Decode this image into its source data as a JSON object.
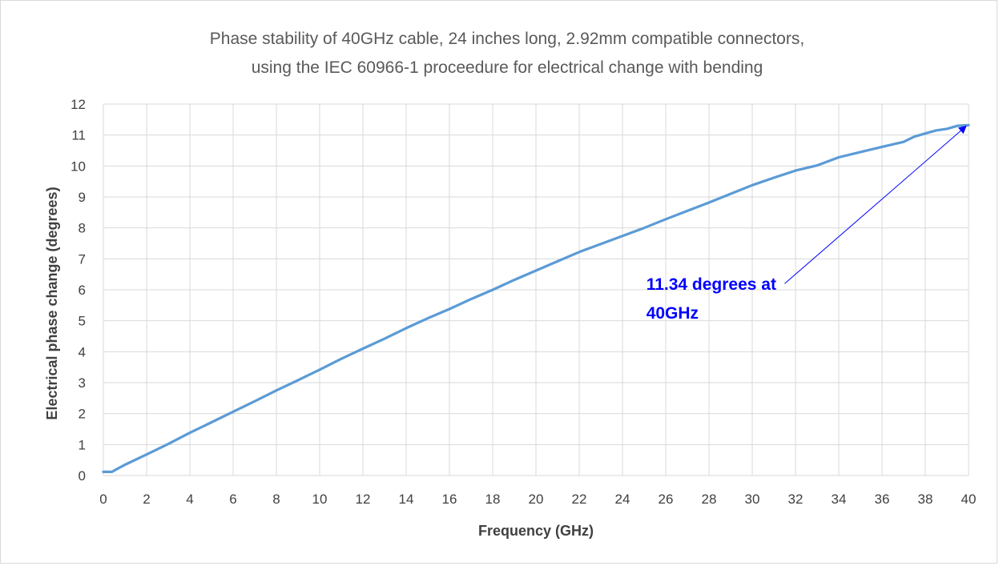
{
  "chart_data": {
    "type": "line",
    "title_lines": [
      "Phase stability of 40GHz cable, 24 inches long, 2.92mm compatible connectors,",
      "using the IEC 60966-1 proceedure for electrical change with bending"
    ],
    "xlabel": "Frequency (GHz)",
    "ylabel": "Electrical phase change (degrees)",
    "xlim": [
      0,
      40
    ],
    "ylim": [
      0,
      12
    ],
    "x_ticks": [
      "0",
      "2",
      "4",
      "6",
      "8",
      "10",
      "12",
      "14",
      "16",
      "18",
      "20",
      "22",
      "24",
      "26",
      "28",
      "30",
      "32",
      "34",
      "36",
      "38",
      "40"
    ],
    "y_ticks": [
      "0",
      "1",
      "2",
      "3",
      "4",
      "5",
      "6",
      "7",
      "8",
      "9",
      "10",
      "11",
      "12"
    ],
    "grid": true,
    "series": [
      {
        "color": "#5b9bd5",
        "x": [
          0,
          0.4,
          0.6,
          1,
          2,
          3,
          4,
          5,
          6,
          7,
          8,
          9,
          10,
          11,
          12,
          13,
          14,
          15,
          16,
          17,
          18,
          19,
          20,
          21,
          22,
          23,
          24,
          25,
          26,
          27,
          28,
          29,
          30,
          31,
          32,
          33,
          34,
          35,
          36,
          36.5,
          37,
          37.5,
          38,
          38.5,
          39,
          39.5,
          40
        ],
        "y": [
          0.12,
          0.12,
          0.2,
          0.35,
          0.68,
          1.02,
          1.38,
          1.72,
          2.06,
          2.4,
          2.75,
          3.08,
          3.42,
          3.77,
          4.1,
          4.42,
          4.76,
          5.08,
          5.38,
          5.7,
          6.0,
          6.32,
          6.62,
          6.92,
          7.22,
          7.48,
          7.74,
          8.0,
          8.28,
          8.55,
          8.82,
          9.1,
          9.38,
          9.62,
          9.85,
          10.02,
          10.28,
          10.45,
          10.62,
          10.7,
          10.78,
          10.95,
          11.05,
          11.15,
          11.2,
          11.3,
          11.32
        ]
      }
    ],
    "annotation": {
      "lines": [
        "11.34 degrees at",
        "40GHz"
      ],
      "color": "#0000ff",
      "arrow_target": [
        40,
        11.34
      ],
      "arrow_tail": [
        31.5,
        6.2
      ],
      "text_anchor_data": [
        25.1,
        6.0
      ]
    }
  }
}
